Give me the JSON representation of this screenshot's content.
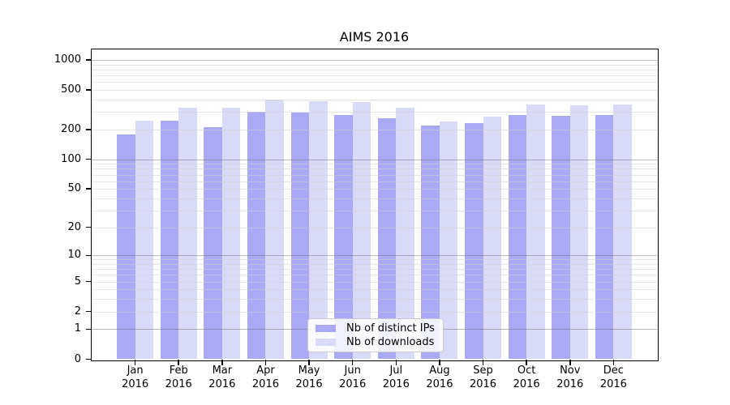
{
  "chart_data": {
    "type": "bar",
    "title": "AIMS 2016",
    "x_months": [
      "Jan",
      "Feb",
      "Mar",
      "Apr",
      "May",
      "Jun",
      "Jul",
      "Aug",
      "Sep",
      "Oct",
      "Nov",
      "Dec"
    ],
    "x_year": "2016",
    "series": [
      {
        "name": "Nb of distinct IPs",
        "color": "#a9a9f5",
        "values": [
          179,
          246,
          213,
          300,
          296,
          278,
          261,
          218,
          232,
          281,
          275,
          279
        ]
      },
      {
        "name": "Nb of downloads",
        "color": "#d9d9f8",
        "values": [
          245,
          331,
          331,
          399,
          387,
          375,
          330,
          242,
          271,
          358,
          352,
          356
        ]
      }
    ],
    "yscale": "log1p",
    "yticks": [
      1000,
      500,
      200,
      100,
      50,
      20,
      10,
      5,
      2,
      1,
      0
    ],
    "ylim": [
      0,
      1280
    ],
    "grid": {
      "horizontal": true,
      "minor_values": [
        2,
        3,
        4,
        5,
        6,
        7,
        8,
        9,
        20,
        30,
        40,
        50,
        60,
        70,
        80,
        90,
        200,
        300,
        400,
        500,
        600,
        700,
        800,
        900
      ],
      "major_values": [
        1,
        10,
        100,
        1000
      ]
    },
    "legend_position": "lower-center"
  },
  "colors": {
    "axis": "#000000",
    "minor_grid": "rgba(208,208,208,0.55)",
    "major_grid": "rgba(115,115,115,0.5)",
    "legend_border": "#cccccc",
    "legend_background": "rgba(255,255,255,0.85)"
  }
}
